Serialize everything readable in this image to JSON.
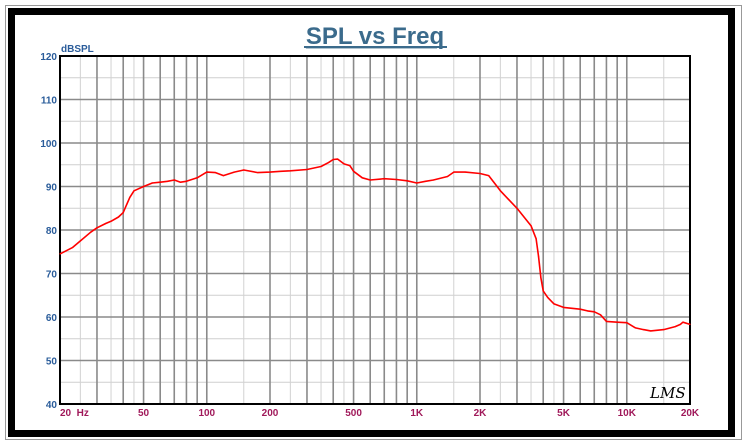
{
  "chart_data": {
    "type": "line",
    "title": "SPL vs Freq",
    "ylabel": "dBSPL",
    "xlabel": "",
    "xscale": "log",
    "xlim": [
      20,
      20000
    ],
    "ylim": [
      40,
      120
    ],
    "yticks": [
      40,
      50,
      60,
      70,
      80,
      90,
      100,
      110,
      120
    ],
    "xticks": [
      {
        "value": 20,
        "label": "20  Hz"
      },
      {
        "value": 50,
        "label": "50"
      },
      {
        "value": 100,
        "label": "100"
      },
      {
        "value": 200,
        "label": "200"
      },
      {
        "value": 500,
        "label": "500"
      },
      {
        "value": 1000,
        "label": "1K"
      },
      {
        "value": 2000,
        "label": "2K"
      },
      {
        "value": 5000,
        "label": "5K"
      },
      {
        "value": 10000,
        "label": "10K"
      },
      {
        "value": 20000,
        "label": "20K"
      }
    ],
    "grid": true,
    "series": [
      {
        "name": "SPL",
        "color": "#ff0000",
        "x": [
          20,
          23,
          25,
          28,
          30,
          33,
          35,
          38,
          40,
          43,
          45,
          50,
          55,
          60,
          65,
          70,
          75,
          80,
          90,
          100,
          110,
          120,
          135,
          150,
          175,
          200,
          225,
          250,
          300,
          350,
          380,
          400,
          420,
          450,
          480,
          500,
          550,
          600,
          700,
          800,
          900,
          1000,
          1100,
          1200,
          1400,
          1500,
          1700,
          2000,
          2200,
          2500,
          2800,
          3000,
          3300,
          3500,
          3700,
          3800,
          3900,
          4000,
          4200,
          4500,
          5000,
          6000,
          6500,
          7000,
          7500,
          8000,
          9000,
          10000,
          11000,
          12000,
          13000,
          15000,
          17000,
          18000,
          18500,
          20000
        ],
        "y": [
          74.5,
          76,
          77.5,
          79.5,
          80.5,
          81.5,
          82,
          83,
          84,
          87.5,
          89,
          90,
          90.8,
          91,
          91.2,
          91.5,
          91,
          91.2,
          92,
          93.3,
          93.2,
          92.5,
          93.3,
          93.8,
          93.2,
          93.3,
          93.5,
          93.6,
          93.9,
          94.6,
          95.5,
          96.2,
          96.3,
          95.2,
          94.8,
          93.5,
          92,
          91.5,
          91.8,
          91.6,
          91.3,
          90.8,
          91.2,
          91.5,
          92.3,
          93.3,
          93.3,
          93,
          92.5,
          89,
          86.5,
          85,
          82.5,
          81,
          78,
          74,
          69,
          66,
          64.5,
          63,
          62.2,
          61.8,
          61.4,
          61.2,
          60.5,
          59,
          58.8,
          58.7,
          57.5,
          57.1,
          56.8,
          57.1,
          57.8,
          58.3,
          58.8,
          58.3
        ]
      }
    ],
    "annotations": [
      "LMS"
    ]
  }
}
